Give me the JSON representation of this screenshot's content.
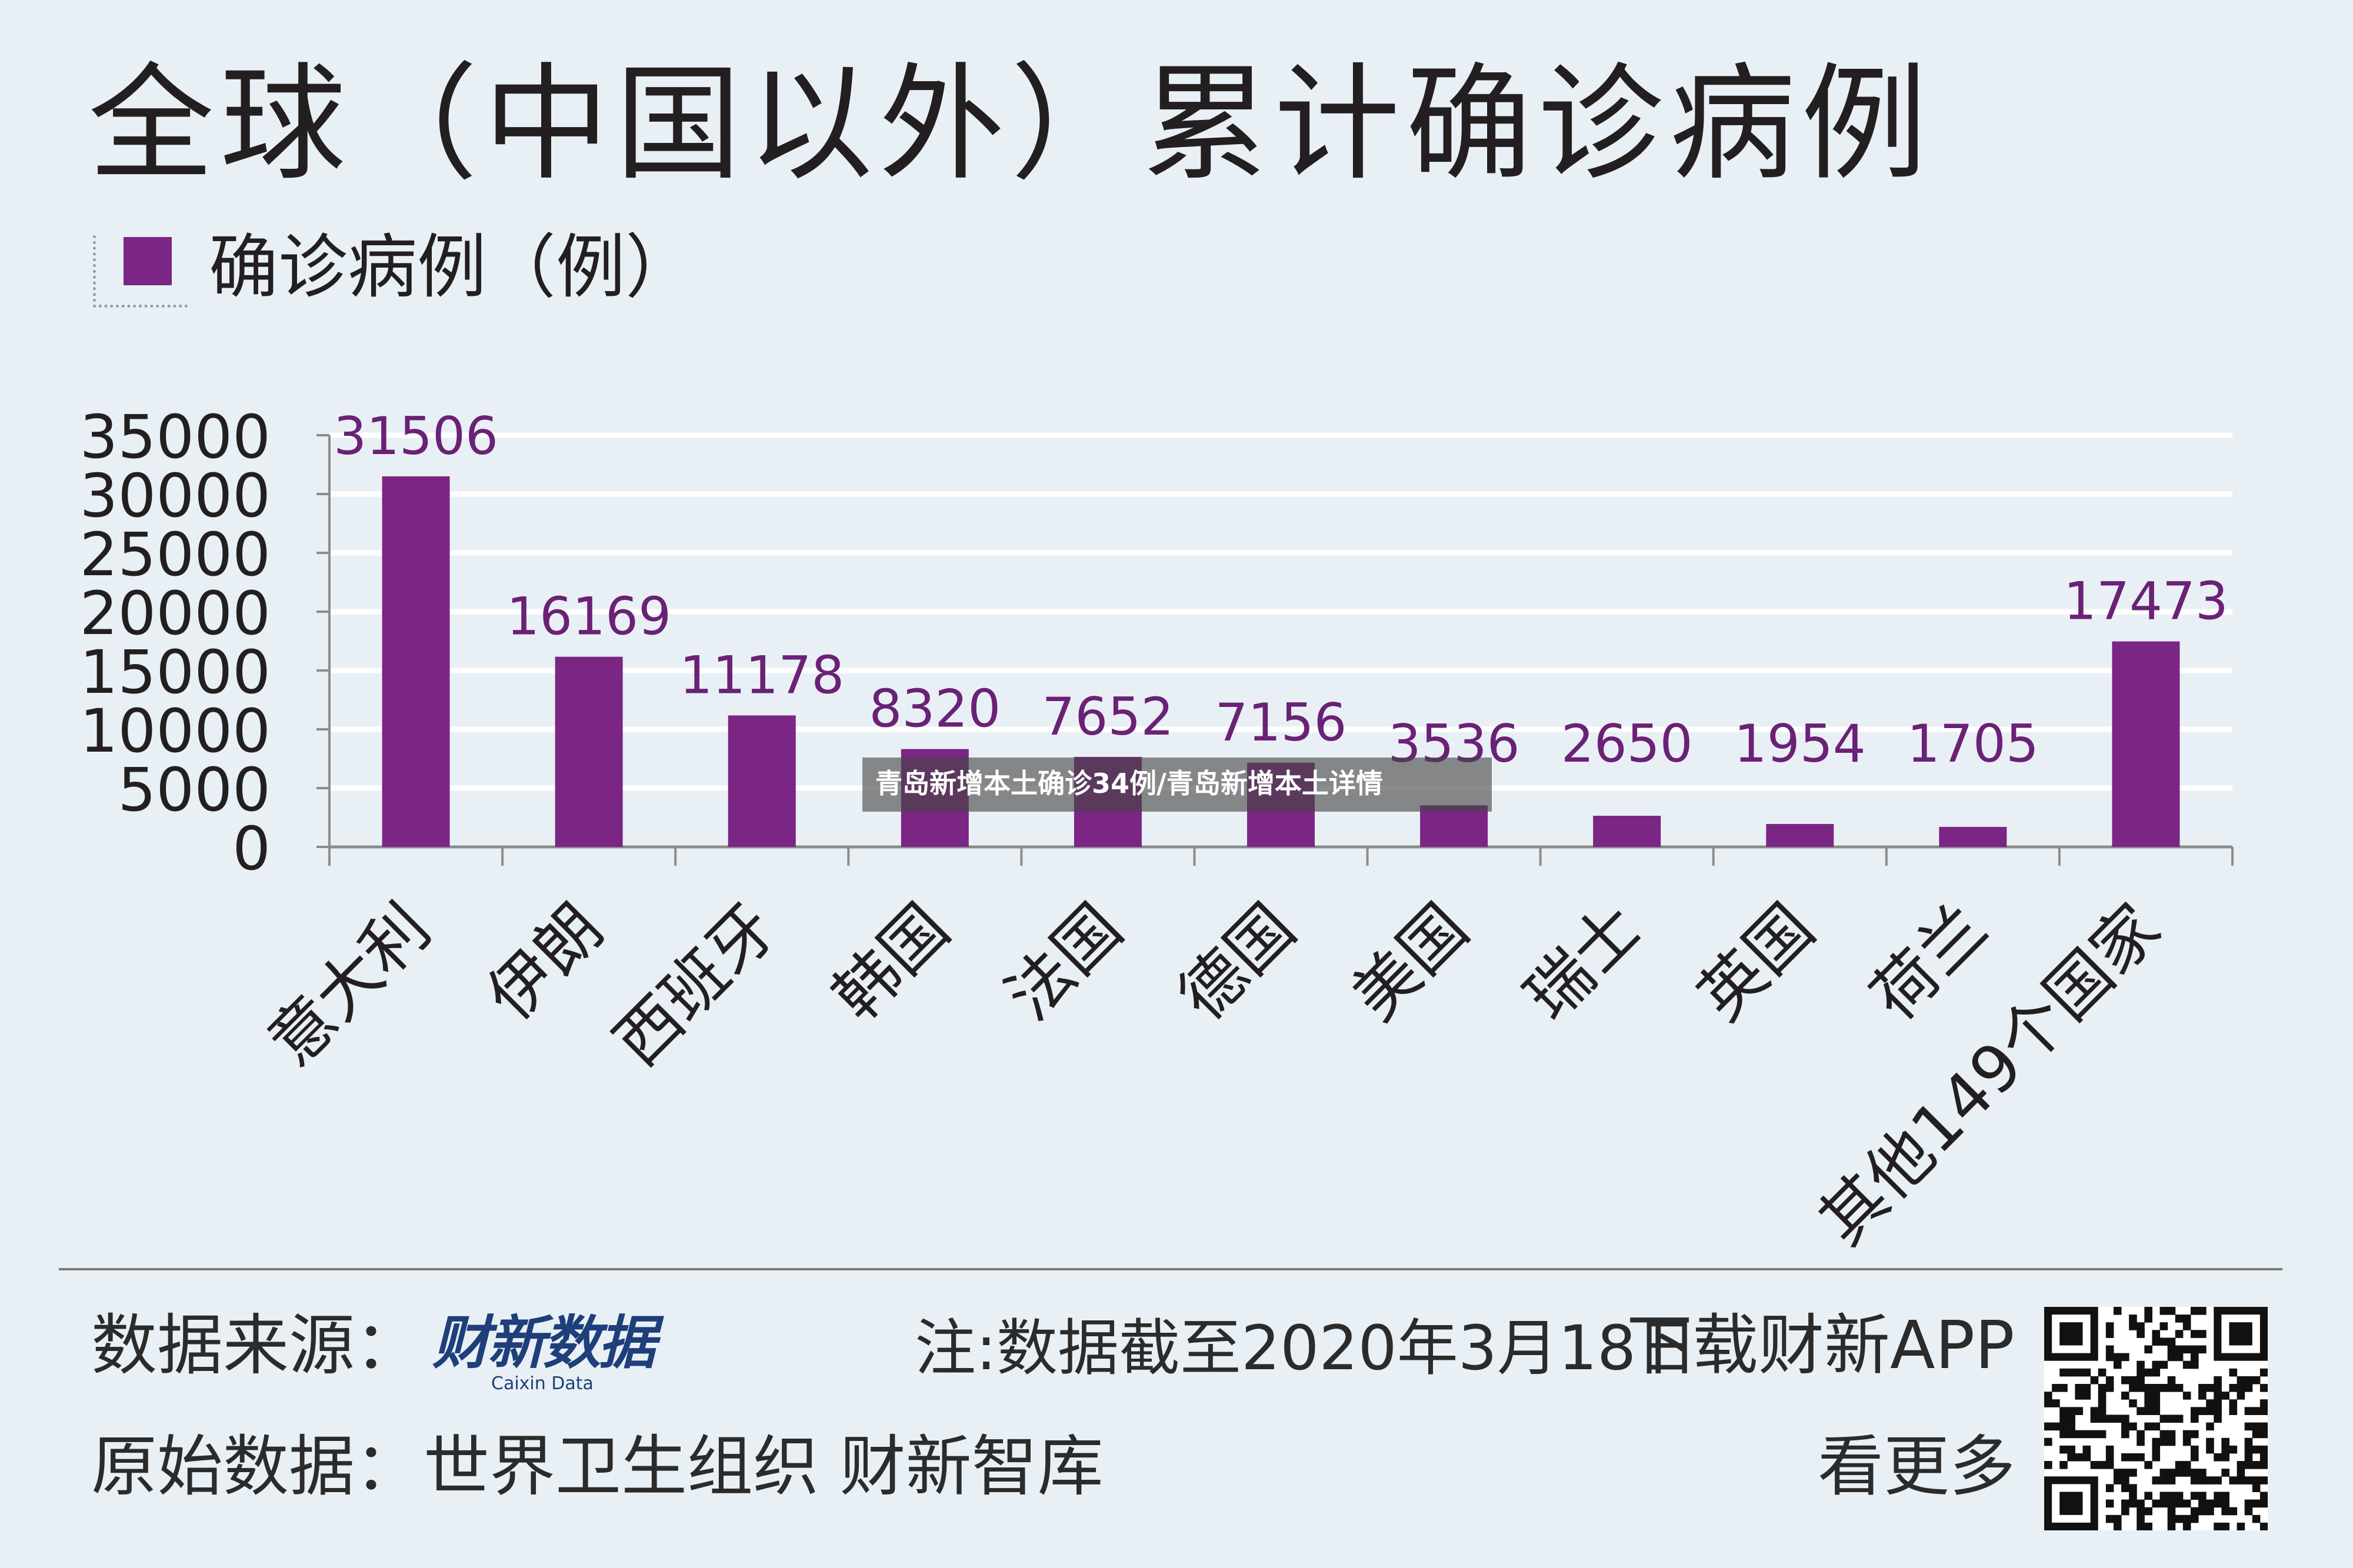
{
  "title": "全球（中国以外）累计确诊病例",
  "legend_label": "确诊病例（例）",
  "overlay_caption": "青岛新增本土确诊34例/青岛新增本土详情",
  "footer": {
    "source_label": "数据来源：",
    "brand_name": "财新数据",
    "brand_sub": "Caixin Data",
    "note": "注:数据截至2020年3月18日",
    "download": "下载财新APP",
    "original_label": "原始数据：",
    "original_sources": "世界卫生组织 财新智库",
    "more": "看更多"
  },
  "colors": {
    "bar": "#7b2584",
    "value_label": "#6a2176",
    "background": "#e9f0f5"
  },
  "chart_data": {
    "type": "bar",
    "categories": [
      "意大利",
      "伊朗",
      "西班牙",
      "韩国",
      "法国",
      "德国",
      "美国",
      "瑞士",
      "英国",
      "荷兰",
      "其他149个国家"
    ],
    "series": [
      {
        "name": "确诊病例（例）",
        "values": [
          31506,
          16169,
          11178,
          8320,
          7652,
          7156,
          3536,
          2650,
          1954,
          1705,
          17473
        ]
      }
    ],
    "value_labels": [
      "31506",
      "16169",
      "11178",
      "8320",
      "7652",
      "7156",
      "3536",
      "2650",
      "1954",
      "1705",
      "17473"
    ],
    "y_ticks": [
      0,
      5000,
      10000,
      15000,
      20000,
      25000,
      30000,
      35000
    ],
    "y_tick_labels": [
      "0",
      "5000",
      "10000",
      "15000",
      "20000",
      "25000",
      "30000",
      "35000"
    ],
    "ylim": [
      0,
      35000
    ],
    "grid": true,
    "legend_position": "top-left",
    "category_label_rotation": -45
  }
}
